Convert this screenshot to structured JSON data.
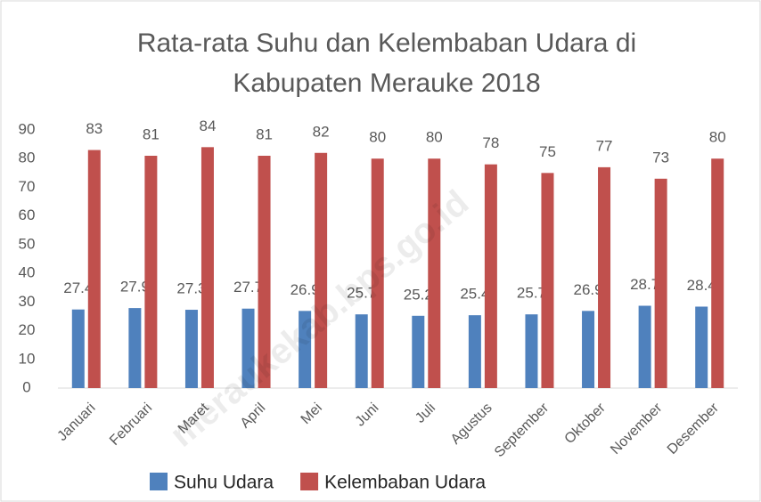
{
  "chart_data": {
    "type": "bar",
    "title": [
      "Rata-rata Suhu dan Kelembaban Udara di",
      "Kabupaten Merauke 2018"
    ],
    "categories": [
      "Januari",
      "Februari",
      "Maret",
      "April",
      "Mei",
      "Juni",
      "Juli",
      "Agustus",
      "September",
      "Oktober",
      "November",
      "Desember"
    ],
    "series": [
      {
        "name": "Suhu Udara",
        "color": "#4f81bd",
        "values": [
          27.4,
          27.9,
          27.3,
          27.7,
          26.9,
          25.7,
          25.2,
          25.4,
          25.7,
          26.9,
          28.7,
          28.4
        ]
      },
      {
        "name": "Kelembaban Udara",
        "color": "#c0504d",
        "values": [
          83,
          81,
          84,
          81,
          82,
          80,
          80,
          78,
          75,
          77,
          73,
          80
        ]
      }
    ],
    "ylim": [
      0,
      90
    ],
    "yticks": [
      0,
      10,
      20,
      30,
      40,
      50,
      60,
      70,
      80,
      90
    ],
    "grid": false,
    "legend": "bottom",
    "watermark": "meraukekab.bps.go.id"
  }
}
